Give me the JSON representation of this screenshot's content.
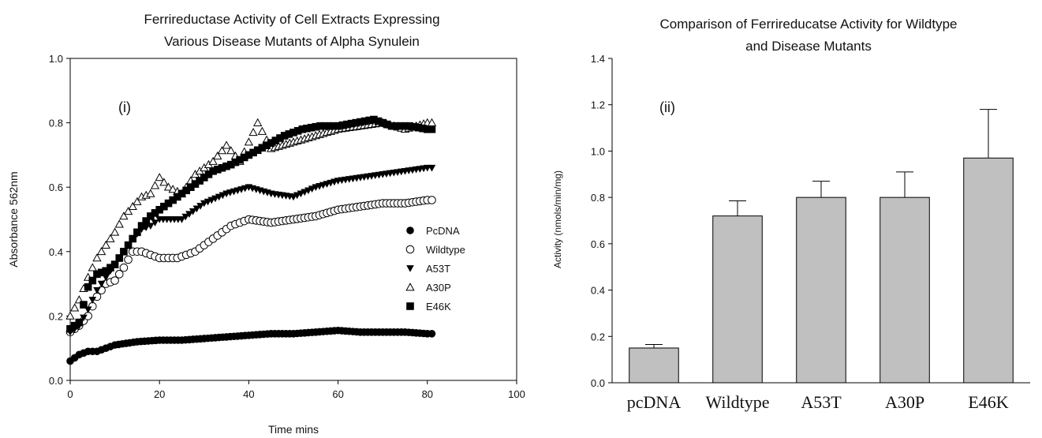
{
  "chart_data": [
    {
      "type": "scatter",
      "title": "Ferrireductase Activity of Cell Extracts Expressing Various Disease Mutants of Alpha Synulein",
      "title_lines": [
        "Ferrireductase Activity of Cell Extracts Expressing",
        "Various Disease Mutants of Alpha Synulein"
      ],
      "annotation": "(i)",
      "xlabel": "Time mins",
      "ylabel": "Absorbance 562nm",
      "xlim": [
        0,
        100
      ],
      "ylim": [
        0,
        1.0
      ],
      "xticks": [
        0,
        20,
        40,
        60,
        80,
        100
      ],
      "yticks": [
        0.0,
        0.2,
        0.4,
        0.6,
        0.8,
        1.0
      ],
      "ytick_labels": [
        "0.0",
        "0.2",
        "0.4",
        "0.6",
        "0.8",
        "1.0"
      ],
      "legend_position": "right",
      "series": [
        {
          "name": "PcDNA",
          "marker": "filled-circle",
          "x": [
            0,
            2,
            4,
            6,
            8,
            10,
            15,
            20,
            25,
            30,
            35,
            40,
            45,
            50,
            55,
            60,
            65,
            70,
            75,
            80,
            81
          ],
          "y": [
            0.06,
            0.08,
            0.09,
            0.09,
            0.1,
            0.11,
            0.12,
            0.125,
            0.125,
            0.13,
            0.135,
            0.14,
            0.145,
            0.145,
            0.15,
            0.155,
            0.15,
            0.15,
            0.15,
            0.145,
            0.145
          ]
        },
        {
          "name": "Wildtype",
          "marker": "open-circle",
          "x": [
            0,
            2,
            4,
            6,
            8,
            10,
            12,
            14,
            16,
            18,
            20,
            24,
            28,
            32,
            36,
            40,
            45,
            50,
            55,
            60,
            65,
            70,
            75,
            80,
            81
          ],
          "y": [
            0.15,
            0.17,
            0.2,
            0.26,
            0.3,
            0.31,
            0.35,
            0.4,
            0.4,
            0.39,
            0.38,
            0.38,
            0.4,
            0.44,
            0.48,
            0.5,
            0.49,
            0.5,
            0.51,
            0.53,
            0.54,
            0.55,
            0.55,
            0.56,
            0.56
          ]
        },
        {
          "name": "A53T",
          "marker": "filled-triangle-down",
          "x": [
            0,
            2,
            4,
            6,
            8,
            10,
            12,
            14,
            16,
            18,
            20,
            25,
            30,
            35,
            40,
            45,
            50,
            55,
            60,
            65,
            70,
            75,
            80,
            81
          ],
          "y": [
            0.15,
            0.17,
            0.22,
            0.28,
            0.32,
            0.36,
            0.4,
            0.44,
            0.47,
            0.48,
            0.5,
            0.5,
            0.55,
            0.58,
            0.6,
            0.58,
            0.57,
            0.6,
            0.62,
            0.63,
            0.64,
            0.65,
            0.66,
            0.66
          ]
        },
        {
          "name": "A30P",
          "marker": "open-triangle-up",
          "x": [
            0,
            2,
            4,
            6,
            8,
            10,
            12,
            14,
            16,
            18,
            20,
            22,
            25,
            28,
            30,
            32,
            35,
            38,
            40,
            42,
            45,
            50,
            55,
            60,
            65,
            70,
            75,
            80,
            81
          ],
          "y": [
            0.2,
            0.25,
            0.32,
            0.38,
            0.42,
            0.46,
            0.51,
            0.54,
            0.57,
            0.58,
            0.63,
            0.6,
            0.58,
            0.64,
            0.66,
            0.68,
            0.73,
            0.68,
            0.74,
            0.8,
            0.72,
            0.74,
            0.76,
            0.78,
            0.79,
            0.8,
            0.78,
            0.8,
            0.8
          ]
        },
        {
          "name": "E46K",
          "marker": "filled-square",
          "x": [
            0,
            2,
            4,
            6,
            8,
            10,
            12,
            14,
            16,
            18,
            20,
            24,
            28,
            32,
            36,
            40,
            44,
            48,
            52,
            56,
            60,
            64,
            68,
            72,
            76,
            80,
            81
          ],
          "y": [
            0.16,
            0.18,
            0.29,
            0.33,
            0.34,
            0.36,
            0.4,
            0.44,
            0.48,
            0.51,
            0.53,
            0.57,
            0.61,
            0.65,
            0.67,
            0.7,
            0.73,
            0.76,
            0.78,
            0.79,
            0.79,
            0.8,
            0.81,
            0.79,
            0.79,
            0.78,
            0.78
          ]
        }
      ]
    },
    {
      "type": "bar",
      "title": "Comparison of Ferrireducatse Activity for Wildtype and Disease Mutants",
      "title_lines": [
        "Comparison of Ferrireducatse Activity for Wildtype",
        "and Disease Mutants"
      ],
      "annotation": "(ii)",
      "xlabel": "",
      "ylabel": "Activity (nmols/min/mg)",
      "ylim": [
        0,
        1.4
      ],
      "yticks": [
        0.0,
        0.2,
        0.4,
        0.6,
        0.8,
        1.0,
        1.2,
        1.4
      ],
      "ytick_labels": [
        "0.0",
        "0.2",
        "0.4",
        "0.6",
        "0.8",
        "1.0",
        "1.2",
        "1.4"
      ],
      "categories": [
        "pcDNA",
        "Wildtype",
        "A53T",
        "A30P",
        "E46K"
      ],
      "values": [
        0.15,
        0.72,
        0.8,
        0.8,
        0.97
      ],
      "errors": [
        0.015,
        0.065,
        0.07,
        0.11,
        0.21
      ],
      "bar_color": "#c0c0c0"
    }
  ]
}
